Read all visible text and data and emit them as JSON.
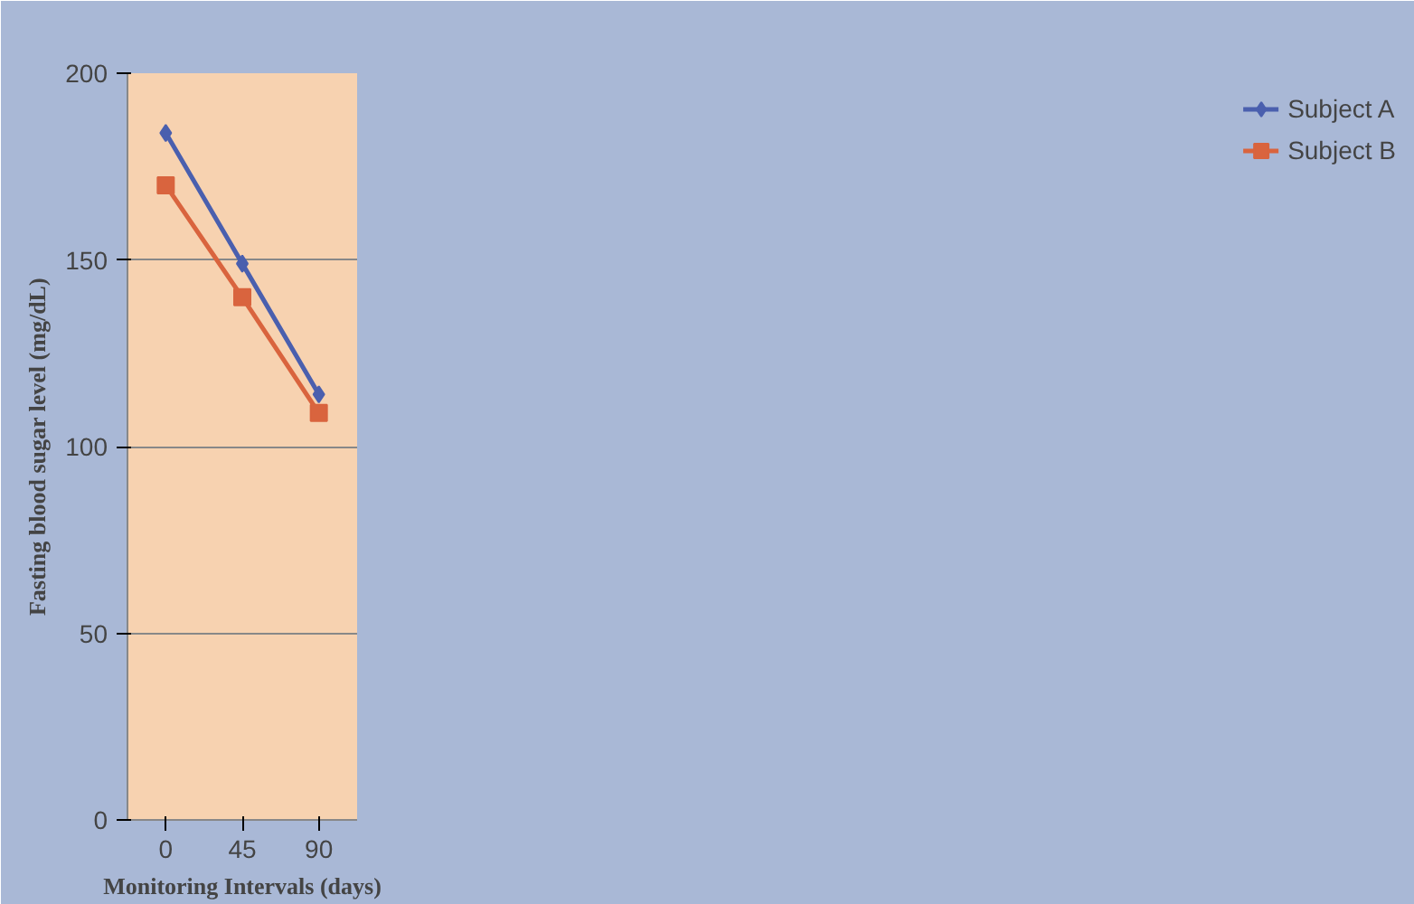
{
  "chart_data": {
    "type": "line",
    "xlabel": "Monitoring Intervals (days)",
    "ylabel": "Fasting blood sugar level (mg/dL)",
    "categories": [
      "0",
      "45",
      "90"
    ],
    "series": [
      {
        "name": "Subject A",
        "color": "#4a5fae",
        "values": [
          184,
          149,
          114
        ],
        "marker": "diamond"
      },
      {
        "name": "Subject B",
        "color": "#d9643e",
        "values": [
          170,
          140,
          109
        ],
        "marker": "square"
      }
    ],
    "ylim": [
      0,
      200
    ],
    "yticks": [
      0,
      50,
      100,
      150,
      200
    ],
    "grid": "y",
    "legend": "right",
    "line_style": "solid"
  }
}
